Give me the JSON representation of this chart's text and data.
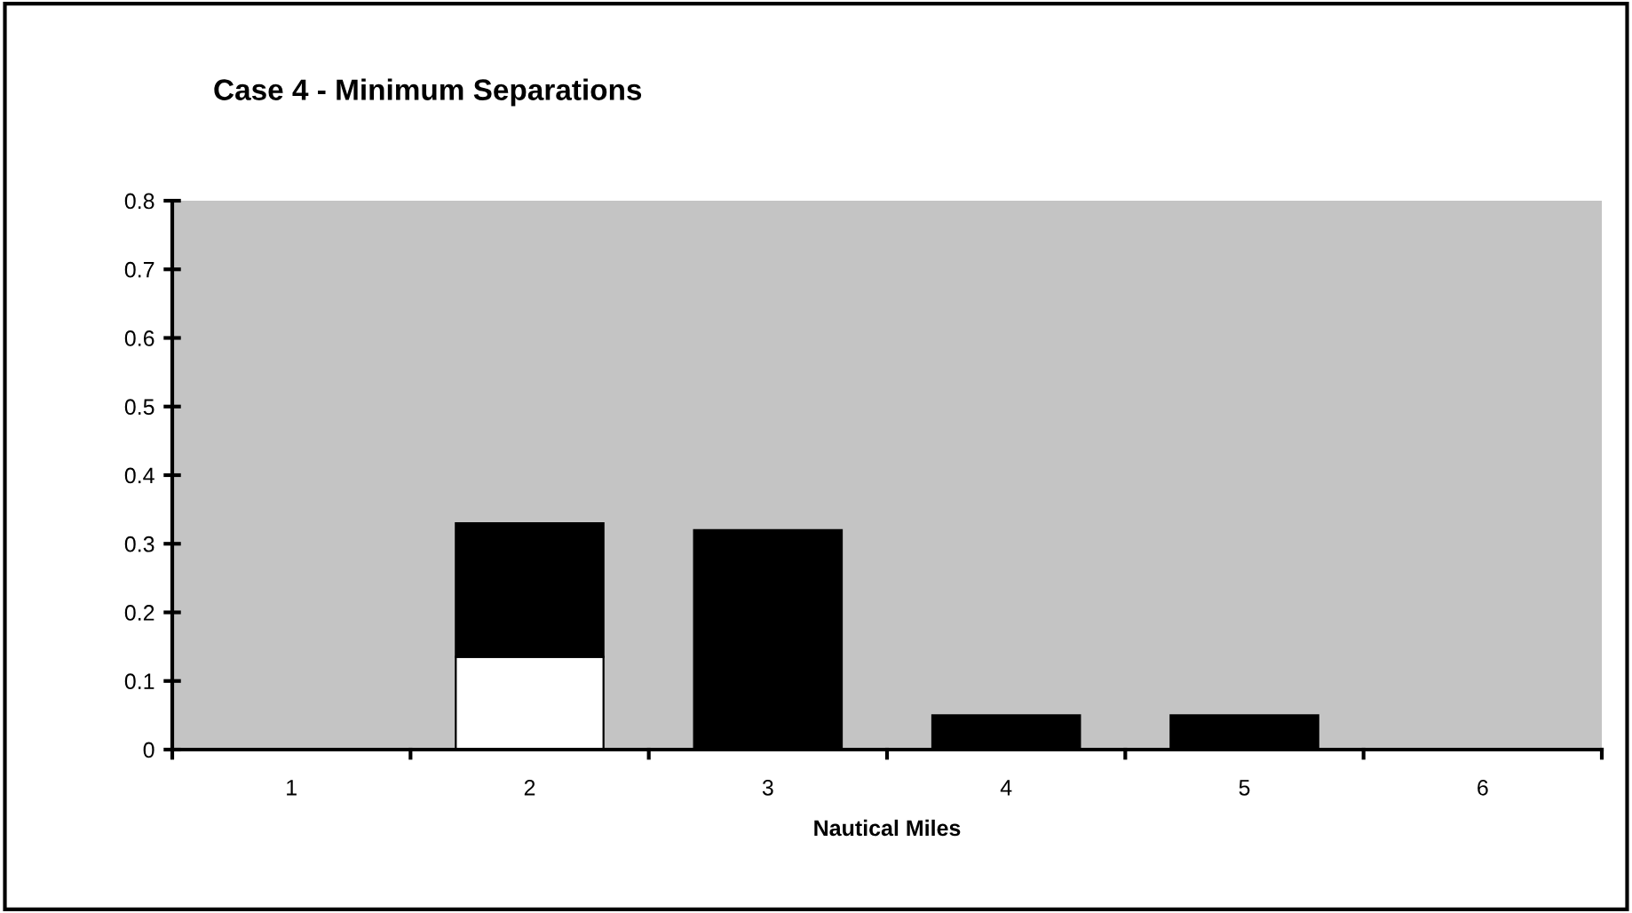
{
  "chart_data": {
    "type": "bar",
    "title": "Case 4 - Minimum Separations",
    "xlabel": "Nautical Miles",
    "categories": [
      "1",
      "2",
      "3",
      "4",
      "5",
      "6"
    ],
    "stacked": true,
    "series": [
      {
        "color": "#ffffff",
        "values": [
          0,
          0.135,
          0,
          0,
          0,
          0
        ]
      },
      {
        "color": "#000000",
        "values": [
          0,
          0.195,
          0.32,
          0.05,
          0.05,
          0
        ]
      }
    ],
    "ylim": [
      0,
      0.8
    ],
    "yticks": [
      0,
      0.1,
      0.2,
      0.3,
      0.4,
      0.5,
      0.6,
      0.7,
      0.8
    ],
    "grid": false,
    "legend": false
  }
}
